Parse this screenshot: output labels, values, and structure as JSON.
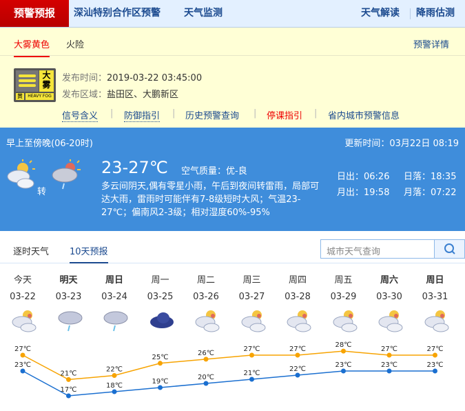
{
  "topnav": {
    "brand": "预警预报",
    "items": [
      "深汕特别合作区预警",
      "天气监测"
    ],
    "right": [
      "天气解读",
      "降雨估测"
    ]
  },
  "warning": {
    "tabs": [
      "大雾黄色",
      "火险"
    ],
    "detail_link": "预警详情",
    "signal": {
      "char1": "大",
      "char2": "雾",
      "level": "黄",
      "english": "HEAVY FOG",
      "color": "#f5e53a"
    },
    "time_label": "发布时间：",
    "time": "2019-03-22 03:45:00",
    "area_label": "发布区域：",
    "area": "盐田区、大鹏新区",
    "links": [
      "信号含义",
      "防御指引",
      "历史预警查询",
      "停课指引",
      "省内城市预警信息"
    ]
  },
  "today": {
    "period": "早上至傍晚(06-20时)",
    "update": "更新时间：03月22日 08:19",
    "temp": "23-27℃",
    "aqi": "空气质量：优-良",
    "turn": "转",
    "icons": [
      "partly-cloudy-icon",
      "thunder-shower-icon"
    ],
    "desc": "多云间阴天,偶有零星小雨，午后到夜间转雷雨，局部可达大雨，雷雨时可能伴有7-8级短时大风；气温23-27℃；偏南风2-3级；相对湿度60%-95%",
    "sunrise": "日出：06:26",
    "sunset": "日落：18:35",
    "moonrise": "月出：19:58",
    "moonset": "月落：07:22",
    "bg": "#3f8ddb"
  },
  "forecast_tabs": [
    "逐时天气",
    "10天预报"
  ],
  "search": {
    "placeholder": "城市天气查询"
  },
  "chart_data": {
    "type": "line",
    "categories": [
      "03-22",
      "03-23",
      "03-24",
      "03-25",
      "03-26",
      "03-27",
      "03-28",
      "03-29",
      "03-30",
      "03-31"
    ],
    "weekdays": [
      "今天",
      "明天",
      "周日",
      "周一",
      "周二",
      "周三",
      "周四",
      "周五",
      "周六",
      "周日"
    ],
    "weekday_bold": [
      false,
      true,
      true,
      false,
      false,
      false,
      false,
      false,
      true,
      true
    ],
    "icons": [
      "partly-cloudy",
      "shower",
      "shower",
      "overcast",
      "partly-cloudy",
      "partly-cloudy",
      "partly-cloudy",
      "partly-cloudy",
      "partly-cloudy",
      "partly-cloudy"
    ],
    "series": [
      {
        "values": [
          27,
          21,
          22,
          25,
          26,
          27,
          27,
          28,
          27,
          27
        ],
        "color": "#f7a300"
      },
      {
        "values": [
          23,
          17,
          18,
          19,
          20,
          21,
          22,
          23,
          23,
          23
        ],
        "color": "#1a6fd0"
      }
    ],
    "unit": "℃"
  }
}
